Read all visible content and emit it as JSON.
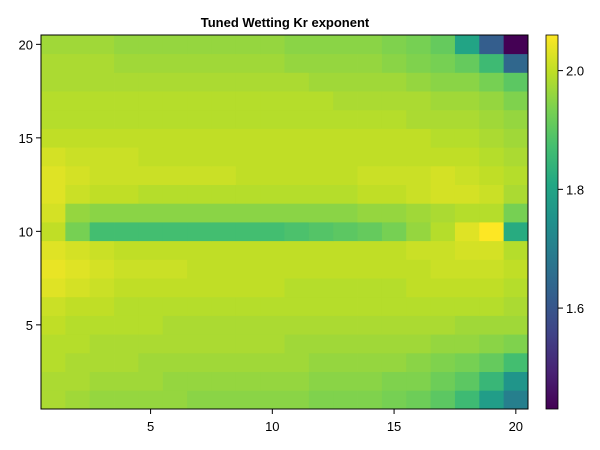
{
  "chart_data": {
    "type": "heatmap",
    "title": "Tuned Wetting Kr exponent",
    "xlabel": "",
    "ylabel": "",
    "xlim": [
      0.5,
      20.5
    ],
    "ylim": [
      0.5,
      20.5
    ],
    "x_ticks": [
      5,
      10,
      15,
      20
    ],
    "y_ticks": [
      5,
      10,
      15,
      20
    ],
    "colormap": "viridis",
    "colorrange": [
      1.43,
      2.06
    ],
    "colorbar_ticks": [
      1.6,
      1.8,
      2.0
    ],
    "rows_from_y1": [
      [
        1.98,
        1.97,
        1.96,
        1.96,
        1.96,
        1.96,
        1.95,
        1.95,
        1.95,
        1.95,
        1.95,
        1.94,
        1.94,
        1.94,
        1.93,
        1.92,
        1.9,
        1.86,
        1.78,
        1.7
      ],
      [
        1.98,
        1.98,
        1.97,
        1.97,
        1.97,
        1.96,
        1.96,
        1.96,
        1.96,
        1.96,
        1.96,
        1.95,
        1.95,
        1.95,
        1.94,
        1.94,
        1.92,
        1.9,
        1.85,
        1.76
      ],
      [
        1.99,
        1.98,
        1.98,
        1.98,
        1.97,
        1.97,
        1.97,
        1.97,
        1.97,
        1.97,
        1.97,
        1.96,
        1.96,
        1.96,
        1.96,
        1.95,
        1.94,
        1.93,
        1.91,
        1.87
      ],
      [
        1.99,
        1.99,
        1.98,
        1.98,
        1.98,
        1.98,
        1.98,
        1.98,
        1.98,
        1.98,
        1.97,
        1.97,
        1.97,
        1.97,
        1.97,
        1.97,
        1.96,
        1.96,
        1.95,
        1.94
      ],
      [
        2.0,
        1.99,
        1.99,
        1.99,
        1.99,
        1.98,
        1.98,
        1.98,
        1.98,
        1.98,
        1.98,
        1.98,
        1.98,
        1.98,
        1.98,
        1.98,
        1.98,
        1.97,
        1.97,
        1.97
      ],
      [
        2.01,
        2.0,
        2.0,
        1.99,
        1.99,
        1.99,
        1.99,
        1.99,
        1.99,
        1.99,
        1.99,
        1.99,
        1.99,
        1.99,
        1.99,
        1.99,
        1.99,
        1.99,
        1.99,
        1.98
      ],
      [
        2.03,
        2.02,
        2.01,
        2.0,
        2.0,
        2.0,
        2.0,
        2.0,
        2.0,
        2.0,
        1.99,
        1.99,
        1.99,
        1.99,
        1.99,
        2.0,
        2.0,
        2.0,
        2.0,
        1.99
      ],
      [
        2.04,
        2.03,
        2.02,
        2.01,
        2.01,
        2.01,
        2.0,
        2.0,
        2.0,
        2.0,
        2.0,
        2.0,
        2.0,
        2.0,
        2.0,
        2.0,
        2.01,
        2.01,
        2.01,
        2.0
      ],
      [
        2.03,
        2.02,
        2.01,
        2.0,
        2.0,
        2.0,
        2.0,
        2.0,
        2.0,
        2.0,
        2.0,
        2.0,
        2.0,
        2.0,
        2.0,
        2.01,
        2.01,
        2.02,
        2.02,
        1.99
      ],
      [
        2.0,
        1.93,
        1.87,
        1.87,
        1.87,
        1.87,
        1.87,
        1.87,
        1.87,
        1.87,
        1.88,
        1.89,
        1.9,
        1.91,
        1.93,
        1.96,
        1.99,
        2.03,
        2.06,
        1.82
      ],
      [
        2.02,
        1.96,
        1.95,
        1.95,
        1.95,
        1.95,
        1.95,
        1.95,
        1.95,
        1.95,
        1.95,
        1.95,
        1.95,
        1.96,
        1.96,
        1.97,
        1.98,
        1.99,
        1.99,
        1.93
      ],
      [
        2.03,
        2.01,
        2.0,
        2.0,
        1.99,
        1.99,
        1.99,
        1.99,
        1.99,
        1.99,
        1.99,
        1.99,
        1.99,
        2.0,
        2.0,
        2.01,
        2.02,
        2.02,
        2.01,
        1.98
      ],
      [
        2.03,
        2.02,
        2.01,
        2.01,
        2.01,
        2.01,
        2.01,
        2.01,
        2.0,
        2.0,
        2.0,
        2.0,
        2.0,
        2.01,
        2.01,
        2.01,
        2.02,
        2.01,
        2.0,
        1.99
      ],
      [
        2.02,
        2.01,
        2.01,
        2.01,
        2.0,
        2.0,
        2.0,
        2.0,
        2.0,
        2.0,
        2.0,
        2.0,
        2.0,
        2.0,
        2.0,
        2.0,
        2.0,
        2.0,
        1.99,
        1.98
      ],
      [
        2.0,
        2.0,
        2.0,
        2.0,
        2.0,
        2.0,
        2.0,
        2.0,
        2.0,
        2.0,
        2.0,
        2.0,
        2.0,
        2.0,
        2.0,
        2.0,
        1.99,
        1.99,
        1.98,
        1.97
      ],
      [
        1.99,
        1.99,
        1.99,
        1.99,
        1.99,
        1.99,
        1.99,
        1.99,
        1.99,
        1.99,
        1.99,
        1.99,
        1.99,
        1.99,
        1.99,
        1.98,
        1.98,
        1.98,
        1.97,
        1.96
      ],
      [
        1.99,
        1.99,
        1.99,
        1.99,
        1.99,
        1.99,
        1.99,
        1.99,
        1.99,
        1.99,
        1.99,
        1.99,
        1.98,
        1.98,
        1.98,
        1.98,
        1.97,
        1.97,
        1.96,
        1.94
      ],
      [
        1.98,
        1.98,
        1.98,
        1.98,
        1.98,
        1.98,
        1.98,
        1.98,
        1.98,
        1.98,
        1.98,
        1.97,
        1.97,
        1.97,
        1.97,
        1.96,
        1.95,
        1.95,
        1.93,
        1.9
      ],
      [
        1.98,
        1.98,
        1.98,
        1.97,
        1.97,
        1.97,
        1.97,
        1.97,
        1.97,
        1.97,
        1.96,
        1.96,
        1.96,
        1.96,
        1.95,
        1.94,
        1.93,
        1.91,
        1.86,
        1.64
      ],
      [
        1.97,
        1.97,
        1.97,
        1.96,
        1.96,
        1.96,
        1.96,
        1.96,
        1.96,
        1.96,
        1.95,
        1.95,
        1.95,
        1.95,
        1.94,
        1.93,
        1.91,
        1.8,
        1.62,
        1.43
      ]
    ]
  }
}
